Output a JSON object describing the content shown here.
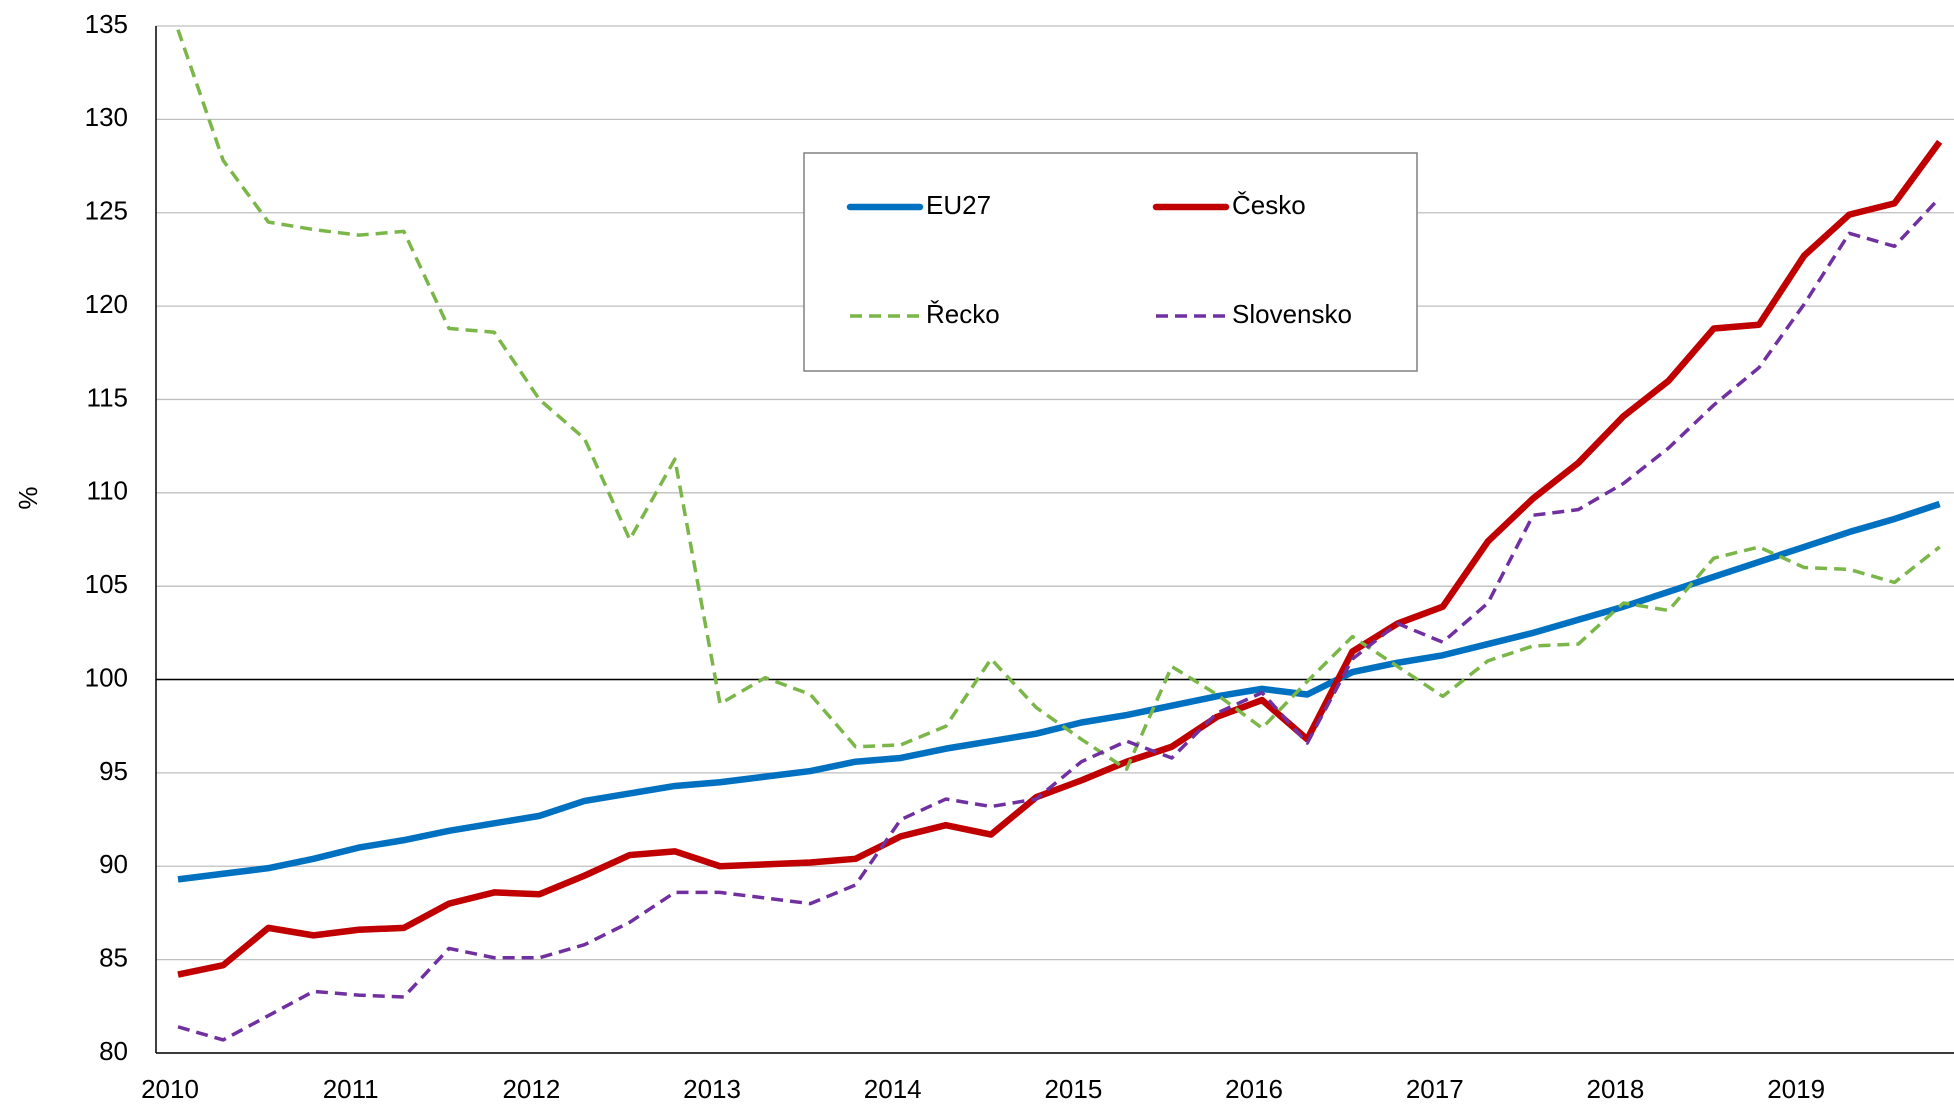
{
  "chart_data": {
    "type": "line",
    "ylabel": "%",
    "categories": [
      "2010",
      null,
      null,
      null,
      "2011",
      null,
      null,
      null,
      "2012",
      null,
      null,
      null,
      "2013",
      null,
      null,
      null,
      "2014",
      null,
      null,
      null,
      "2015",
      null,
      null,
      null,
      "2016",
      null,
      null,
      null,
      "2017",
      null,
      null,
      null,
      "2018",
      null,
      null,
      null,
      "2019",
      null,
      null,
      null
    ],
    "series": [
      {
        "name": "EU27",
        "color": "#0070c0",
        "dash": false,
        "values": [
          89.3,
          89.6,
          89.9,
          90.4,
          91.0,
          91.4,
          91.9,
          92.3,
          92.7,
          93.5,
          93.9,
          94.3,
          94.5,
          94.8,
          95.1,
          95.6,
          95.8,
          96.3,
          96.7,
          97.1,
          97.7,
          98.1,
          98.6,
          99.1,
          99.5,
          99.2,
          100.4,
          100.9,
          101.3,
          101.9,
          102.5,
          103.2,
          103.9,
          104.7,
          105.5,
          106.3,
          107.1,
          107.9,
          108.6,
          109.4
        ]
      },
      {
        "name": "Česko",
        "color": "#c00000",
        "dash": false,
        "values": [
          84.2,
          84.7,
          86.7,
          86.3,
          86.6,
          86.7,
          88.0,
          88.6,
          88.5,
          89.5,
          90.6,
          90.8,
          90.0,
          90.1,
          90.2,
          90.4,
          91.6,
          92.2,
          91.7,
          93.7,
          94.6,
          95.6,
          96.4,
          98.0,
          98.9,
          96.8,
          101.5,
          103.0,
          103.9,
          107.4,
          109.7,
          111.6,
          114.1,
          116.0,
          118.8,
          119.0,
          122.7,
          124.9,
          125.5,
          128.8
        ]
      },
      {
        "name": "Řecko",
        "color": "#7ab648",
        "dash": true,
        "values": [
          134.8,
          127.8,
          124.5,
          124.1,
          123.8,
          124.0,
          118.8,
          118.6,
          115.0,
          112.9,
          107.5,
          111.8,
          98.7,
          100.1,
          99.2,
          96.4,
          96.5,
          97.5,
          101.1,
          98.5,
          96.8,
          95.2,
          100.7,
          99.2,
          97.4,
          99.9,
          102.3,
          100.7,
          99.1,
          101.0,
          101.8,
          101.9,
          104.1,
          103.7,
          106.5,
          107.1,
          106.0,
          105.9,
          105.2,
          107.1
        ]
      },
      {
        "name": "Slovensko",
        "color": "#7030a0",
        "dash": true,
        "values": [
          81.4,
          80.7,
          82.0,
          83.3,
          83.1,
          83.0,
          85.6,
          85.1,
          85.1,
          85.8,
          87.0,
          88.6,
          88.6,
          88.3,
          88.0,
          89.0,
          92.5,
          93.6,
          93.2,
          93.6,
          95.6,
          96.7,
          95.8,
          98.2,
          99.3,
          96.6,
          101.1,
          103.0,
          102.0,
          104.1,
          108.8,
          109.1,
          110.5,
          112.4,
          114.7,
          116.7,
          120.1,
          123.9,
          123.2,
          125.8
        ]
      }
    ],
    "ylim": [
      80,
      135
    ],
    "yticks": [
      80,
      85,
      90,
      95,
      100,
      105,
      110,
      115,
      120,
      125,
      130,
      135
    ],
    "reference_line": 100,
    "grid": true
  }
}
